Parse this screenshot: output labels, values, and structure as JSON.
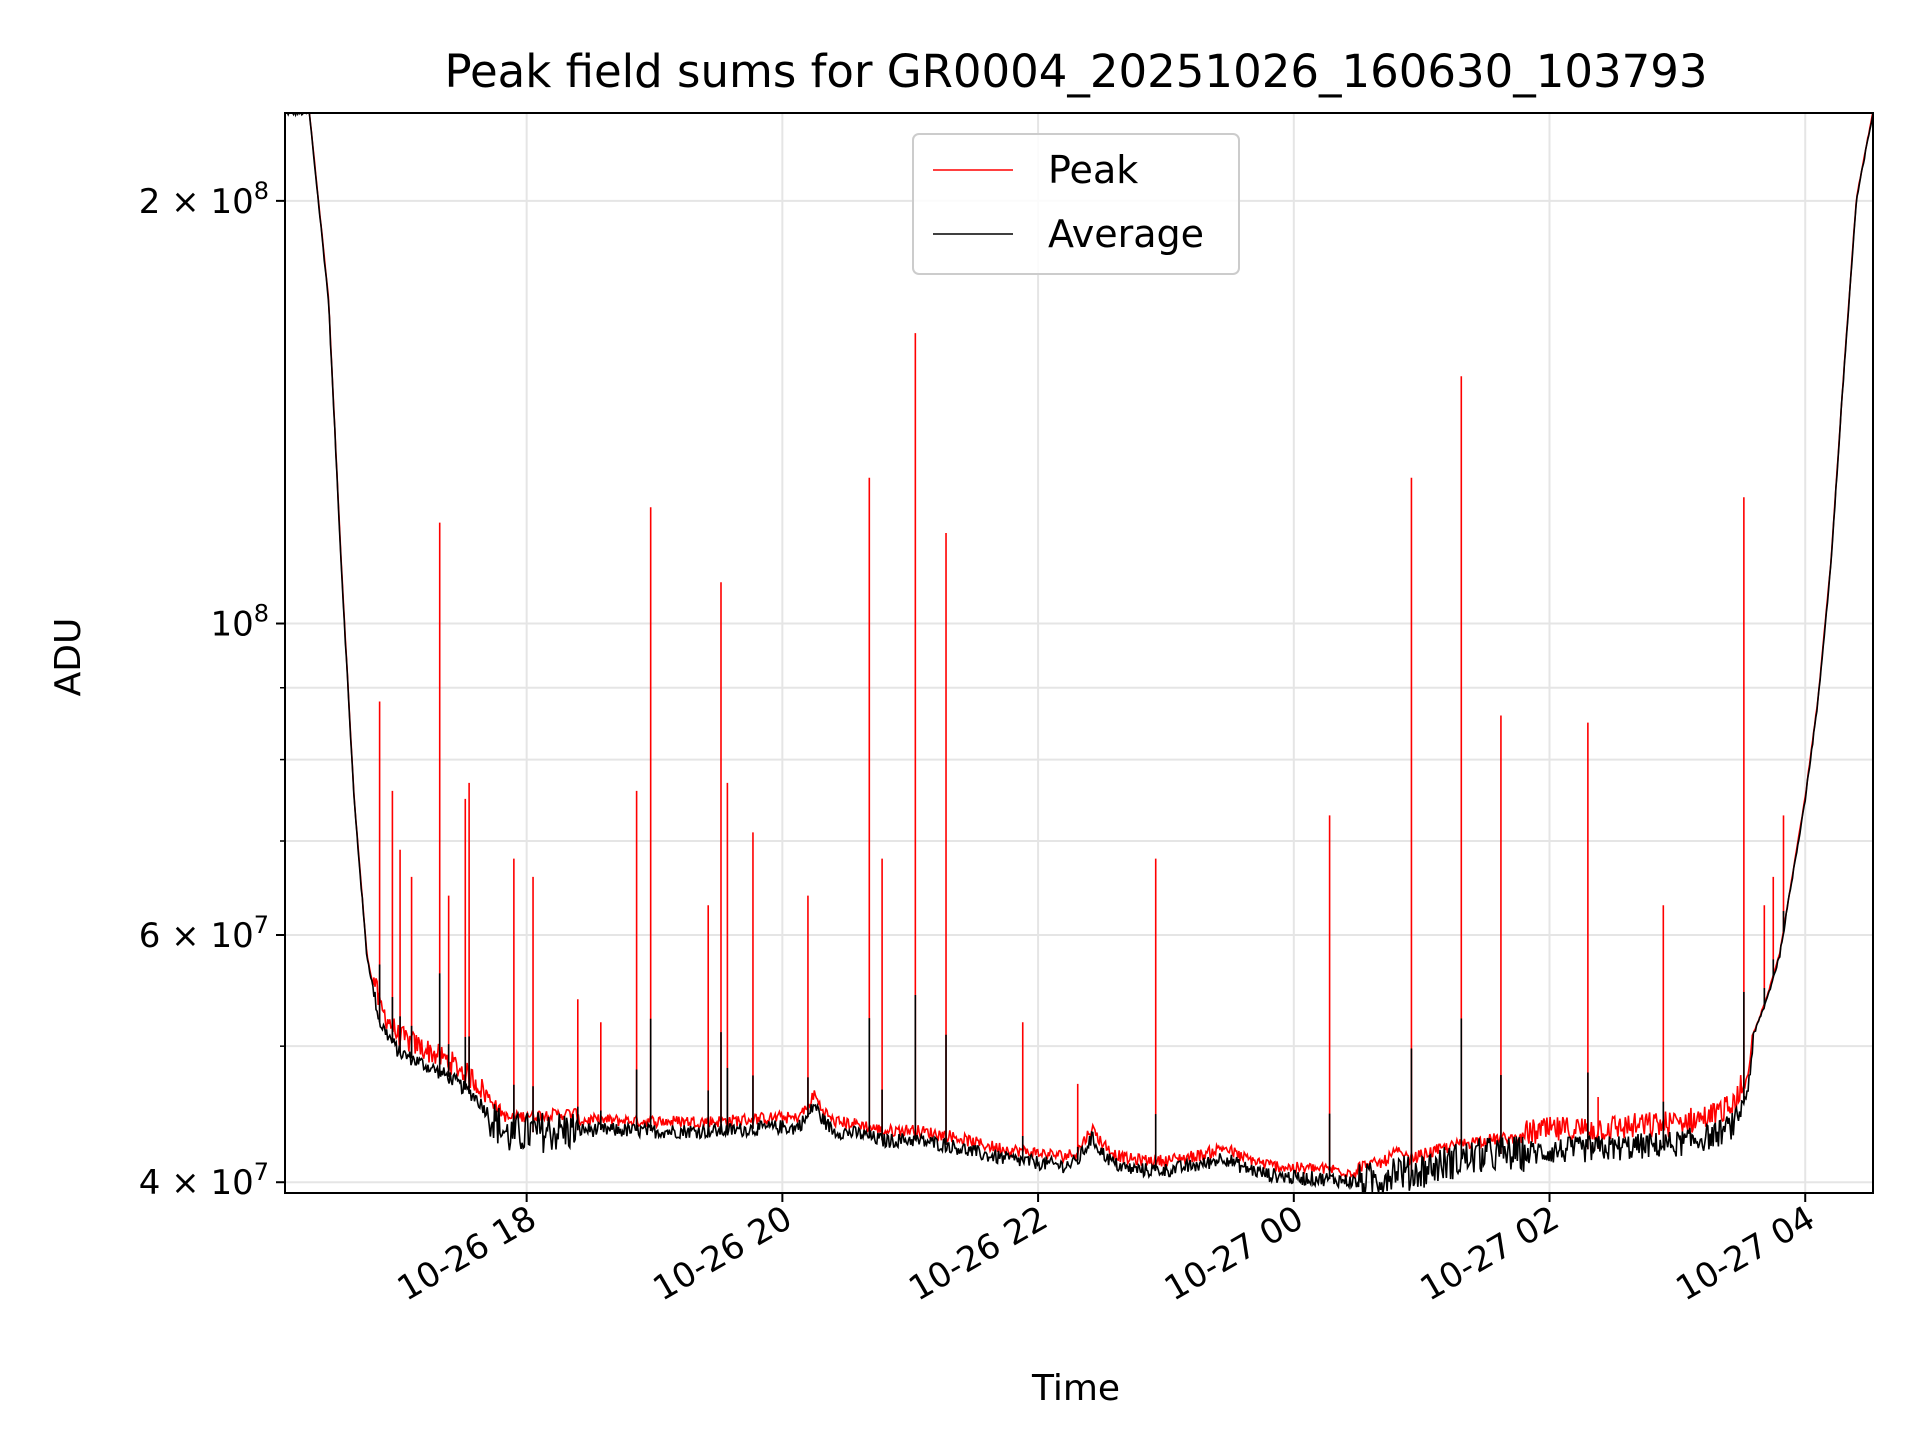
{
  "chart_data": {
    "type": "line",
    "title": "Peak field sums for GR0004_20251026_160630_103793",
    "xlabel": "Time",
    "ylabel": "ADU",
    "yscale": "log",
    "grid": true,
    "legend_position": "top-center",
    "x_unit": "hours after 2025-10-26 00:00",
    "xlim": [
      16.11,
      28.53
    ],
    "ylim": [
      39300000,
      231000000
    ],
    "x_ticks": [
      {
        "value": 18,
        "label": "10-26 18"
      },
      {
        "value": 20,
        "label": "10-26 20"
      },
      {
        "value": 22,
        "label": "10-26 22"
      },
      {
        "value": 24,
        "label": "10-27 00"
      },
      {
        "value": 26,
        "label": "10-27 02"
      },
      {
        "value": 28,
        "label": "10-27 04"
      }
    ],
    "y_major_ticks": [
      {
        "value": 40000000,
        "mantissa": "4",
        "times": "×",
        "base": "10",
        "exp": "7"
      },
      {
        "value": 60000000,
        "mantissa": "6",
        "times": "×",
        "base": "10",
        "exp": "7"
      },
      {
        "value": 100000000,
        "mantissa": "",
        "times": "",
        "base": "10",
        "exp": "8"
      },
      {
        "value": 200000000,
        "mantissa": "2",
        "times": "×",
        "base": "10",
        "exp": "8"
      }
    ],
    "y_minor_ticks": [
      50000000,
      70000000,
      80000000,
      90000000
    ],
    "series": [
      {
        "name": "Average",
        "color": "#000000",
        "x": [
          16.11,
          16.3,
          16.45,
          16.55,
          16.65,
          16.75,
          16.85,
          17.0,
          17.2,
          17.4,
          17.6,
          17.75,
          17.85,
          18.0,
          18.5,
          19.0,
          19.5,
          20.0,
          20.1,
          20.2,
          20.25,
          20.3,
          20.4,
          20.6,
          20.8,
          21.0,
          21.3,
          21.6,
          21.8,
          22.0,
          22.2,
          22.3,
          22.42,
          22.5,
          22.6,
          22.7,
          22.85,
          23.0,
          23.3,
          23.45,
          23.6,
          23.8,
          24.0,
          24.3,
          24.5,
          24.7,
          24.8,
          24.9,
          25.0,
          25.2,
          25.4,
          25.6,
          25.8,
          26.0,
          26.5,
          27.0,
          27.3,
          27.45,
          27.55,
          27.6,
          27.7,
          27.8,
          27.9,
          28.0,
          28.1,
          28.2,
          28.3,
          28.4,
          28.53
        ],
        "values": [
          231000000,
          231000000,
          170000000,
          110000000,
          75000000,
          58000000,
          52000000,
          49500000,
          48500000,
          47500000,
          46000000,
          44200000,
          43200000,
          43400000,
          43600000,
          43500000,
          43500000,
          43800000,
          43700000,
          44500000,
          45500000,
          44500000,
          43500000,
          43300000,
          42800000,
          42900000,
          42500000,
          41800000,
          41500000,
          41300000,
          41100000,
          41300000,
          43000000,
          42000000,
          41200000,
          40900000,
          40800000,
          40800000,
          41200000,
          41700000,
          41000000,
          40500000,
          40300000,
          40200000,
          40000000,
          40300000,
          41000000,
          40500000,
          40800000,
          41300000,
          41700000,
          41900000,
          41900000,
          42100000,
          42300000,
          42600000,
          43200000,
          44000000,
          46500000,
          51000000,
          54000000,
          58000000,
          66000000,
          75000000,
          88000000,
          110000000,
          150000000,
          200000000,
          231000000
        ]
      },
      {
        "name": "Peak",
        "color": "#ff0000",
        "follows": "Average",
        "spikes": [
          {
            "x": 16.85,
            "y": 88000000
          },
          {
            "x": 16.95,
            "y": 76000000
          },
          {
            "x": 17.01,
            "y": 69000000
          },
          {
            "x": 17.1,
            "y": 66000000
          },
          {
            "x": 17.32,
            "y": 118000000
          },
          {
            "x": 17.39,
            "y": 64000000
          },
          {
            "x": 17.52,
            "y": 75000000
          },
          {
            "x": 17.55,
            "y": 77000000
          },
          {
            "x": 17.9,
            "y": 68000000
          },
          {
            "x": 18.05,
            "y": 66000000
          },
          {
            "x": 18.4,
            "y": 54000000
          },
          {
            "x": 18.58,
            "y": 52000000
          },
          {
            "x": 18.86,
            "y": 76000000
          },
          {
            "x": 18.97,
            "y": 121000000
          },
          {
            "x": 19.42,
            "y": 63000000
          },
          {
            "x": 19.52,
            "y": 107000000
          },
          {
            "x": 19.57,
            "y": 77000000
          },
          {
            "x": 19.77,
            "y": 71000000
          },
          {
            "x": 20.2,
            "y": 64000000
          },
          {
            "x": 20.68,
            "y": 127000000
          },
          {
            "x": 20.78,
            "y": 68000000
          },
          {
            "x": 21.04,
            "y": 161000000
          },
          {
            "x": 21.28,
            "y": 116000000
          },
          {
            "x": 21.88,
            "y": 52000000
          },
          {
            "x": 22.31,
            "y": 47000000
          },
          {
            "x": 22.92,
            "y": 68000000
          },
          {
            "x": 24.28,
            "y": 73000000
          },
          {
            "x": 24.92,
            "y": 127000000
          },
          {
            "x": 25.31,
            "y": 150000000
          },
          {
            "x": 25.62,
            "y": 86000000
          },
          {
            "x": 26.3,
            "y": 85000000
          },
          {
            "x": 26.38,
            "y": 46000000
          },
          {
            "x": 26.89,
            "y": 63000000
          },
          {
            "x": 27.52,
            "y": 123000000
          },
          {
            "x": 27.68,
            "y": 63000000
          },
          {
            "x": 27.75,
            "y": 66000000
          },
          {
            "x": 27.83,
            "y": 73000000
          }
        ]
      }
    ]
  }
}
